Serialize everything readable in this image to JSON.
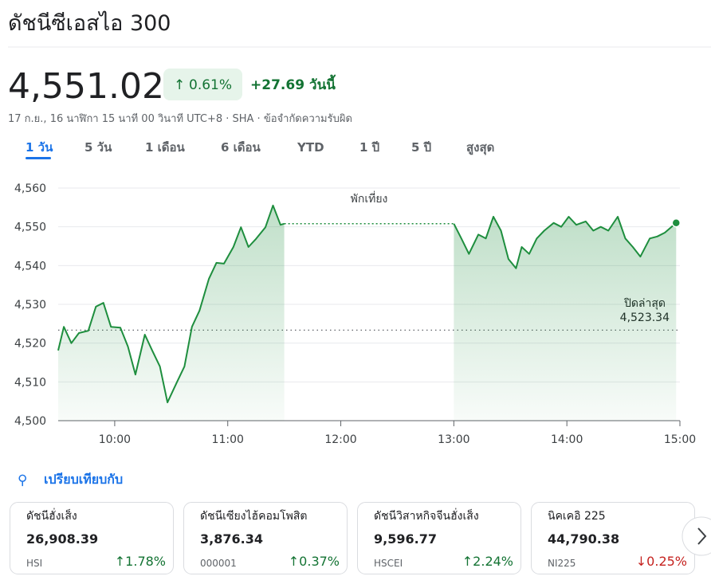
{
  "header": {
    "title": "ดัชนีซีเอสไอ 300",
    "price": "4,551.02",
    "change_percent": "0.61%",
    "change_direction": "up",
    "change_abs": "+27.69",
    "change_period": "วันนี้",
    "timestamp": "17 ก.ย., 16 นาฬิกา 15 นาที 00 วินาที UTC+8 · SHA · ",
    "disclaimer": "ข้อจำกัดความรับผิด"
  },
  "tabs": {
    "items": [
      "1 วัน",
      "5 วัน",
      "1 เดือน",
      "6 เดือน",
      "YTD",
      "1 ปี",
      "5 ปี",
      "สูงสุด"
    ],
    "active": 0
  },
  "chart_data": {
    "type": "line",
    "annotation": "พักเที่ยง",
    "x": [
      "09:30",
      "09:33",
      "09:37",
      "09:41",
      "09:46",
      "09:50",
      "09:54",
      "09:58",
      "10:03",
      "10:07",
      "10:11",
      "10:16",
      "10:20",
      "10:24",
      "10:28",
      "10:33",
      "10:37",
      "10:41",
      "10:45",
      "10:50",
      "10:54",
      "10:58",
      "11:03",
      "11:07",
      "11:11",
      "11:15",
      "11:20",
      "11:24",
      "11:28",
      "11:30",
      "12:00",
      "13:00",
      "13:04",
      "13:08",
      "13:13",
      "13:17",
      "13:21",
      "13:25",
      "13:29",
      "13:33",
      "13:36",
      "13:40",
      "13:44",
      "13:48",
      "13:53",
      "13:57",
      "14:01",
      "14:05",
      "14:10",
      "14:14",
      "14:18",
      "14:22",
      "14:27",
      "14:31",
      "14:35",
      "14:39",
      "14:44",
      "14:48",
      "14:52",
      "14:58"
    ],
    "series": [
      {
        "name": "ดัชนีซีเอสไอ 300",
        "color": "#1e8e3e",
        "values": [
          4518.1,
          4524.2,
          4520.0,
          4522.6,
          4523.2,
          4529.4,
          4530.4,
          4524.2,
          4524.0,
          4519.1,
          4511.9,
          4522.2,
          4518.0,
          4514.0,
          4504.7,
          4509.9,
          4514.0,
          4524.2,
          4528.4,
          4536.6,
          4540.7,
          4540.5,
          4544.8,
          4549.9,
          4544.8,
          4546.9,
          4549.9,
          4555.5,
          4550.5,
          4550.8,
          null,
          4550.8,
          4547.0,
          4543.0,
          4548.0,
          4547.0,
          4552.6,
          4549.0,
          4541.7,
          4539.3,
          4544.8,
          4543.0,
          4547.0,
          4549.0,
          4551.0,
          4550.0,
          4552.6,
          4550.5,
          4551.4,
          4549.0,
          4550.0,
          4549.0,
          4552.6,
          4547.0,
          4544.8,
          4542.3,
          4547.0,
          4547.5,
          4548.5,
          4551.02
        ]
      }
    ],
    "previous_close": {
      "label": "ปิดล่าสุด",
      "value": 4523.34,
      "value_label": "4,523.34"
    },
    "xlim": [
      "09:30",
      "15:00"
    ],
    "xticks": [
      "10:00",
      "11:00",
      "12:00",
      "13:00",
      "14:00",
      "15:00"
    ],
    "ylim": [
      4500,
      4560
    ],
    "yticks": [
      {
        "value": 4500,
        "label": "4,500"
      },
      {
        "value": 4510,
        "label": "4,510"
      },
      {
        "value": 4520,
        "label": "4,520"
      },
      {
        "value": 4530,
        "label": "4,530"
      },
      {
        "value": 4540,
        "label": "4,540"
      },
      {
        "value": 4550,
        "label": "4,550"
      },
      {
        "value": 4560,
        "label": "4,560"
      }
    ],
    "grid": true
  },
  "compare": {
    "label": "เปรียบเทียบกับ"
  },
  "cards": [
    {
      "name": "ดัชนีฮั่งเส็ง",
      "price": "26,908.39",
      "code": "HSI",
      "change": "1.78%",
      "direction": "up"
    },
    {
      "name": "ดัชนีเซียงไฮ้คอมโพสิต",
      "price": "3,876.34",
      "code": "000001",
      "change": "0.37%",
      "direction": "up"
    },
    {
      "name": "ดัชนีวิสาหกิจจีนฮั่งเส็ง",
      "price": "9,596.77",
      "code": "HSCEI",
      "change": "2.24%",
      "direction": "up"
    },
    {
      "name": "นิคเคอิ 225",
      "price": "44,790.38",
      "code": "NI225",
      "change": "0.25%",
      "direction": "down"
    }
  ]
}
